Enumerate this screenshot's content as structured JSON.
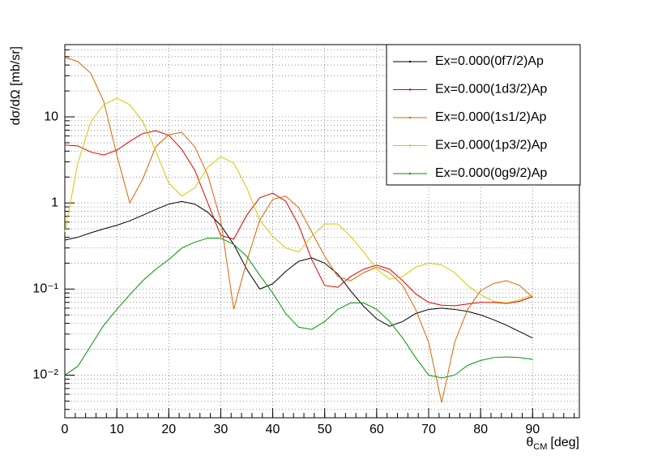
{
  "chart_data": {
    "type": "line",
    "ylabel": "dσ/dΩ [mb/sr]",
    "xlabel": {
      "symbol": "θ",
      "subscript": "CM",
      "unit": "[deg]"
    },
    "xlim": [
      0,
      99
    ],
    "ylim": [
      0.0032,
      69
    ],
    "yscale": "log",
    "grid": true,
    "legend": "upper right",
    "xticks": [
      0,
      10,
      20,
      30,
      40,
      50,
      60,
      70,
      80,
      90
    ],
    "yticks": [
      {
        "value": 0.01,
        "label": "10⁻²"
      },
      {
        "value": 0.1,
        "label": "10⁻¹"
      },
      1,
      10
    ],
    "x": [
      0,
      2.5,
      5,
      7.5,
      10,
      12.5,
      15,
      17.5,
      20,
      22.5,
      25,
      27.5,
      30,
      32.5,
      35,
      37.5,
      40,
      42.5,
      45,
      47.5,
      50,
      52.5,
      55,
      57.5,
      60,
      62.5,
      65,
      67.5,
      70,
      72.5,
      75,
      77.5,
      80,
      82.5,
      85,
      87.5,
      90
    ],
    "series": [
      {
        "name": "Ex=0.000(0f7/2)Ap",
        "color": "#000000",
        "values": [
          0.37,
          0.4,
          0.45,
          0.5,
          0.55,
          0.62,
          0.72,
          0.84,
          0.97,
          1.04,
          0.97,
          0.78,
          0.55,
          0.33,
          0.17,
          0.1,
          0.115,
          0.16,
          0.21,
          0.23,
          0.2,
          0.15,
          0.095,
          0.063,
          0.045,
          0.037,
          0.042,
          0.052,
          0.058,
          0.06,
          0.058,
          0.055,
          0.05,
          0.044,
          0.038,
          0.032,
          0.027
        ]
      },
      {
        "name": "Ex=0.000(1d3/2)Ap",
        "color": "#e00000",
        "values": [
          4.7,
          4.6,
          3.9,
          3.6,
          4.1,
          5.2,
          6.4,
          6.9,
          6.1,
          4.2,
          2.4,
          1.0,
          0.42,
          0.38,
          0.72,
          1.15,
          1.3,
          1.05,
          0.55,
          0.22,
          0.11,
          0.105,
          0.14,
          0.17,
          0.19,
          0.17,
          0.125,
          0.088,
          0.07,
          0.065,
          0.064,
          0.067,
          0.07,
          0.07,
          0.068,
          0.072,
          0.082
        ]
      },
      {
        "name": "Ex=0.000(1s1/2)Ap",
        "color": "#d96400",
        "values": [
          49,
          44,
          32,
          15,
          3.6,
          1.0,
          1.9,
          4.5,
          6.2,
          6.6,
          4.5,
          2.1,
          0.63,
          0.058,
          0.21,
          0.63,
          1.1,
          1.2,
          0.88,
          0.46,
          0.24,
          0.14,
          0.125,
          0.155,
          0.18,
          0.155,
          0.11,
          0.058,
          0.024,
          0.0048,
          0.024,
          0.058,
          0.096,
          0.116,
          0.125,
          0.11,
          0.08
        ]
      },
      {
        "name": "Ex=0.000(1p3/2)Ap",
        "color": "#d4c800",
        "values": [
          0.46,
          2.9,
          8.8,
          13.8,
          16.5,
          13.8,
          8.8,
          4.0,
          1.7,
          1.2,
          1.5,
          2.6,
          3.45,
          2.9,
          1.5,
          0.63,
          0.41,
          0.3,
          0.27,
          0.41,
          0.57,
          0.57,
          0.41,
          0.27,
          0.17,
          0.13,
          0.14,
          0.18,
          0.2,
          0.19,
          0.155,
          0.11,
          0.086,
          0.072,
          0.069,
          0.075,
          0.086
        ]
      },
      {
        "name": "Ex=0.000(0g9/2)Ap",
        "color": "#009600",
        "values": [
          0.01,
          0.0127,
          0.022,
          0.038,
          0.058,
          0.086,
          0.125,
          0.17,
          0.22,
          0.3,
          0.35,
          0.39,
          0.39,
          0.33,
          0.24,
          0.145,
          0.09,
          0.052,
          0.036,
          0.034,
          0.042,
          0.058,
          0.069,
          0.069,
          0.058,
          0.042,
          0.027,
          0.016,
          0.01,
          0.0093,
          0.01,
          0.013,
          0.0148,
          0.016,
          0.0163,
          0.016,
          0.0153
        ]
      }
    ]
  }
}
